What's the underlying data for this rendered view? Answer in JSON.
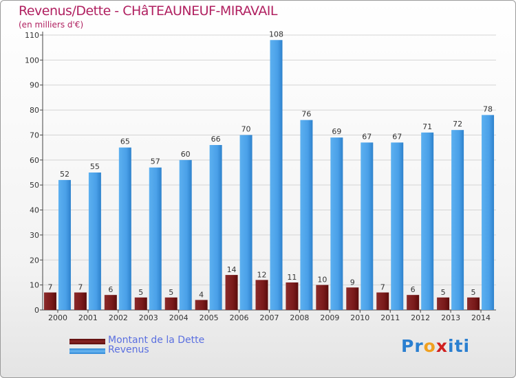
{
  "title": "Revenus/Dette - CHâTEAUNEUF-MIRAVAIL",
  "subtitle": "(en milliers d'€)",
  "logo": {
    "text": "Proxiti"
  },
  "colors": {
    "title": "#b02060",
    "revenus": "#4aa0e8",
    "dette": "#7a1a1a",
    "legend_text": "#5a6fe0"
  },
  "chart_data": {
    "type": "bar",
    "title": "Revenus/Dette - CHâTEAUNEUF-MIRAVAIL",
    "subtitle": "(en milliers d'€)",
    "xlabel": "",
    "ylabel": "",
    "ylim": [
      0,
      110
    ],
    "yticks": [
      0,
      10,
      20,
      30,
      40,
      50,
      60,
      70,
      80,
      90,
      100,
      110
    ],
    "grid": true,
    "legend_position": "bottom-left",
    "categories": [
      "2000",
      "2001",
      "2002",
      "2003",
      "2004",
      "2005",
      "2006",
      "2007",
      "2008",
      "2009",
      "2010",
      "2011",
      "2012",
      "2013",
      "2014"
    ],
    "series": [
      {
        "name": "Montant de la Dette",
        "color": "#7a1a1a",
        "values": [
          7,
          7,
          6,
          5,
          5,
          4,
          14,
          12,
          11,
          10,
          9,
          7,
          6,
          5,
          5
        ]
      },
      {
        "name": "Revenus",
        "color": "#4aa0e8",
        "values": [
          52,
          55,
          65,
          57,
          60,
          66,
          70,
          108,
          76,
          69,
          67,
          67,
          71,
          72,
          78
        ]
      }
    ]
  }
}
